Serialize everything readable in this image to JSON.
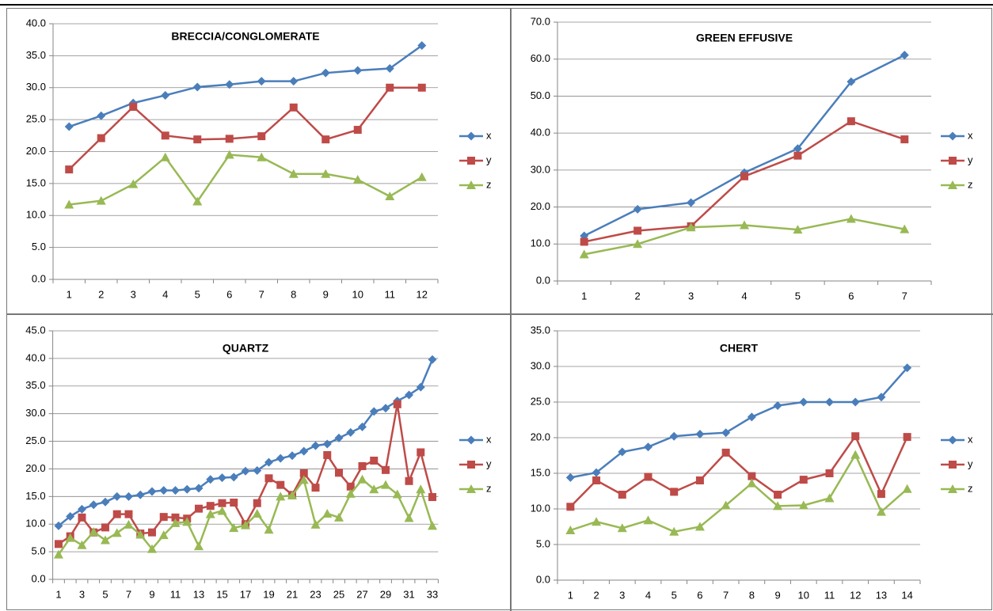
{
  "chart_data": [
    {
      "type": "line",
      "title": "BRECCIA/CONGLOMERATE",
      "categories": [
        1,
        2,
        3,
        4,
        5,
        6,
        7,
        8,
        9,
        10,
        11,
        12
      ],
      "ylim": [
        0,
        40
      ],
      "yticks": [
        {
          "value": 0,
          "label": "0.0"
        },
        {
          "value": 5,
          "label": "5.0"
        },
        {
          "value": 10,
          "label": "10.0"
        },
        {
          "value": 15,
          "label": "15.0"
        },
        {
          "value": 20,
          "label": "20.0"
        },
        {
          "value": 25,
          "label": "25.0"
        },
        {
          "value": 30,
          "label": "30.0"
        },
        {
          "value": 35,
          "label": "35.0"
        },
        {
          "value": 40,
          "label": "40.0"
        }
      ],
      "grid": true,
      "series": [
        {
          "name": "x",
          "color": "#4a7ebb",
          "values": [
            23.9,
            25.6,
            27.6,
            28.8,
            30.1,
            30.5,
            31.0,
            31.0,
            32.3,
            32.7,
            33.0,
            36.6
          ]
        },
        {
          "name": "y",
          "color": "#be4b48",
          "values": [
            17.2,
            22.1,
            27.0,
            22.5,
            21.9,
            22.0,
            22.4,
            26.9,
            21.9,
            23.4,
            30.0,
            30.0
          ]
        },
        {
          "name": "z",
          "color": "#98b954",
          "values": [
            11.7,
            12.3,
            14.9,
            19.1,
            12.2,
            19.5,
            19.1,
            16.5,
            16.5,
            15.6,
            13.0,
            16.0
          ]
        }
      ]
    },
    {
      "type": "line",
      "title": "GREEN EFFUSIVE",
      "categories": [
        1,
        2,
        3,
        4,
        5,
        6,
        7
      ],
      "ylim": [
        0,
        70
      ],
      "yticks": [
        {
          "value": 0,
          "label": "0.0"
        },
        {
          "value": 10,
          "label": "10.0"
        },
        {
          "value": 20,
          "label": "20.0"
        },
        {
          "value": 30,
          "label": "30.0"
        },
        {
          "value": 40,
          "label": "40.0"
        },
        {
          "value": 50,
          "label": "50.0"
        },
        {
          "value": 60,
          "label": "60.0"
        },
        {
          "value": 70,
          "label": "70.0"
        }
      ],
      "grid": true,
      "series": [
        {
          "name": "x",
          "color": "#4a7ebb",
          "values": [
            12.2,
            19.4,
            21.2,
            29.3,
            35.8,
            53.9,
            61.1
          ]
        },
        {
          "name": "y",
          "color": "#be4b48",
          "values": [
            10.6,
            13.6,
            14.8,
            28.3,
            33.9,
            43.2,
            38.3
          ]
        },
        {
          "name": "z",
          "color": "#98b954",
          "values": [
            7.2,
            10.0,
            14.5,
            15.1,
            13.9,
            16.8,
            14.0
          ]
        }
      ]
    },
    {
      "type": "line",
      "title": "QUARTZ",
      "categories": [
        1,
        2,
        3,
        4,
        5,
        6,
        7,
        8,
        9,
        10,
        11,
        12,
        13,
        14,
        15,
        16,
        17,
        18,
        19,
        20,
        21,
        22,
        23,
        24,
        25,
        26,
        27,
        28,
        29,
        30,
        31,
        32,
        33
      ],
      "category_label_step": 2,
      "ylim": [
        0,
        45
      ],
      "yticks": [
        {
          "value": 0,
          "label": "0.0"
        },
        {
          "value": 5,
          "label": "5.0"
        },
        {
          "value": 10,
          "label": "10.0"
        },
        {
          "value": 15,
          "label": "15.0"
        },
        {
          "value": 20,
          "label": "20.0"
        },
        {
          "value": 25,
          "label": "25.0"
        },
        {
          "value": 30,
          "label": "30.0"
        },
        {
          "value": 35,
          "label": "35.0"
        },
        {
          "value": 40,
          "label": "40.0"
        },
        {
          "value": 45,
          "label": "45.0"
        }
      ],
      "grid": true,
      "series": [
        {
          "name": "x",
          "color": "#4a7ebb",
          "values": [
            9.7,
            11.4,
            12.7,
            13.5,
            14.0,
            15.0,
            15.0,
            15.3,
            15.9,
            16.1,
            16.1,
            16.3,
            16.5,
            18.1,
            18.4,
            18.5,
            19.6,
            19.7,
            21.2,
            21.9,
            22.4,
            23.2,
            24.2,
            24.5,
            25.6,
            26.6,
            27.6,
            30.4,
            31.0,
            32.3,
            33.4,
            34.8,
            39.8
          ]
        },
        {
          "name": "y",
          "color": "#be4b48",
          "values": [
            6.4,
            7.8,
            11.2,
            8.5,
            9.4,
            11.8,
            11.8,
            8.3,
            8.5,
            11.3,
            11.2,
            11.0,
            12.8,
            13.3,
            13.8,
            13.9,
            10.0,
            13.8,
            18.3,
            17.1,
            15.3,
            19.2,
            16.6,
            22.5,
            19.3,
            16.8,
            20.5,
            21.5,
            19.8,
            31.7,
            17.8,
            23.0,
            14.9
          ]
        },
        {
          "name": "z",
          "color": "#98b954",
          "values": [
            4.5,
            7.5,
            6.2,
            8.6,
            7.1,
            8.4,
            9.9,
            8.1,
            5.5,
            8.0,
            10.2,
            10.4,
            6.0,
            11.8,
            12.4,
            9.3,
            9.8,
            11.9,
            9.0,
            15.0,
            15.2,
            18.0,
            9.9,
            11.9,
            11.2,
            15.5,
            18.1,
            16.3,
            17.1,
            15.4,
            11.1,
            16.3,
            9.7
          ]
        }
      ]
    },
    {
      "type": "line",
      "title": "CHERT",
      "categories": [
        1,
        2,
        3,
        4,
        5,
        6,
        7,
        8,
        9,
        10,
        11,
        12,
        13,
        14
      ],
      "ylim": [
        0,
        35
      ],
      "yticks": [
        {
          "value": 0,
          "label": "0.0"
        },
        {
          "value": 5,
          "label": "5.0"
        },
        {
          "value": 10,
          "label": "10.0"
        },
        {
          "value": 15,
          "label": "15.0"
        },
        {
          "value": 20,
          "label": "20.0"
        },
        {
          "value": 25,
          "label": "25.0"
        },
        {
          "value": 30,
          "label": "30.0"
        },
        {
          "value": 35,
          "label": "35.0"
        }
      ],
      "grid": true,
      "series": [
        {
          "name": "x",
          "color": "#4a7ebb",
          "values": [
            14.4,
            15.1,
            18.0,
            18.7,
            20.2,
            20.5,
            20.7,
            22.9,
            24.5,
            25.0,
            25.0,
            25.0,
            25.7,
            29.8
          ]
        },
        {
          "name": "y",
          "color": "#be4b48",
          "values": [
            10.3,
            14.0,
            12.0,
            14.5,
            12.4,
            14.0,
            17.9,
            14.6,
            12.0,
            14.1,
            15.0,
            20.2,
            12.1,
            20.1
          ]
        },
        {
          "name": "z",
          "color": "#98b954",
          "values": [
            7.0,
            8.2,
            7.3,
            8.4,
            6.8,
            7.5,
            10.5,
            13.6,
            10.4,
            10.5,
            11.5,
            17.6,
            9.6,
            12.8
          ]
        }
      ]
    }
  ]
}
